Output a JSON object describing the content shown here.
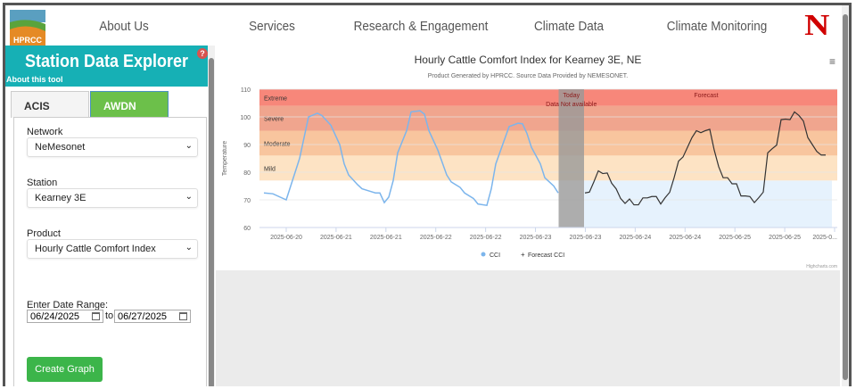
{
  "nav": {
    "logo_text": "HPRCC",
    "items": [
      "About Us",
      "Services",
      "Research & Engagement",
      "Climate Data",
      "Climate Monitoring"
    ],
    "partner_logo_text": "N"
  },
  "sidebar": {
    "title": "Station Data Explorer",
    "about_link": "About this tool",
    "help_icon": "?",
    "tabs": [
      {
        "label": "ACIS",
        "active": false
      },
      {
        "label": "AWDN",
        "active": true
      }
    ],
    "network_label": "Network",
    "network_value": "NeMesonet",
    "station_label": "Station",
    "station_value": "Kearney 3E",
    "product_label": "Product",
    "product_value": "Hourly Cattle Comfort Index",
    "date_label": "Enter Date Range:",
    "date_from": "06/24/2025",
    "date_sep": "to",
    "date_to": "06/27/2025",
    "create_button": "Create Graph"
  },
  "colors": {
    "teal": "#16b0b5",
    "green_tab": "#6cc04a",
    "button": "#3cb54a",
    "cci": "#7cb5ec",
    "forecast": "#333333"
  },
  "chart_data": {
    "type": "line",
    "title": "Hourly Cattle Comfort Index for Kearney 3E, NE",
    "subtitle": "Product Generated by HPRCC. Source Data Provided by NEMESONET.",
    "ylabel": "Temperature",
    "ylim": [
      60,
      110
    ],
    "yticks": [
      60,
      70,
      80,
      90,
      100,
      110
    ],
    "xticks": [
      "2025-06-20",
      "2025-06-21",
      "2025-06-21",
      "2025-06-22",
      "2025-06-22",
      "2025-06-23",
      "2025-06-23",
      "2025-06-24",
      "2025-06-24",
      "2025-06-25",
      "2025-06-25",
      "2025-0..."
    ],
    "bands": [
      {
        "label": "Extreme",
        "from": 104,
        "to": 110,
        "color": "#f7877a"
      },
      {
        "label": "Severe",
        "from": 95,
        "to": 104,
        "color": "#f0a58e"
      },
      {
        "label": "Moderate",
        "from": 86,
        "to": 95,
        "color": "#f8c59e"
      },
      {
        "label": "Mild",
        "from": 77,
        "to": 86,
        "color": "#fde3c4"
      }
    ],
    "today_band": {
      "label": "Today",
      "note": "Data Not available",
      "color": "#999999"
    },
    "forecast_band": {
      "label": "Forecast",
      "color": "#e6f2fd"
    },
    "legend": "bottom",
    "credits": "Highcharts.com",
    "series": [
      {
        "name": "CCI",
        "color": "#7cb5ec",
        "points": [
          [
            "2025-06-19 19:00",
            72.5
          ],
          [
            "2025-06-19 21:00",
            72.2
          ],
          [
            "2025-06-20 00:00",
            70
          ],
          [
            "2025-06-20 01:00",
            75
          ],
          [
            "2025-06-20 03:00",
            85
          ],
          [
            "2025-06-20 05:00",
            100
          ],
          [
            "2025-06-20 07:00",
            101.3
          ],
          [
            "2025-06-20 08:00",
            100.5
          ],
          [
            "2025-06-20 10:00",
            97
          ],
          [
            "2025-06-20 12:00",
            90
          ],
          [
            "2025-06-20 13:00",
            83
          ],
          [
            "2025-06-20 14:00",
            79
          ],
          [
            "2025-06-20 16:00",
            75.5
          ],
          [
            "2025-06-20 17:00",
            74
          ],
          [
            "2025-06-20 19:00",
            73
          ],
          [
            "2025-06-20 20:00",
            72.5
          ],
          [
            "2025-06-20 21:00",
            72.5
          ],
          [
            "2025-06-20 22:00",
            69
          ],
          [
            "2025-06-20 23:00",
            71
          ],
          [
            "2025-06-21 00:00",
            77
          ],
          [
            "2025-06-21 01:00",
            87
          ],
          [
            "2025-06-21 03:00",
            95
          ],
          [
            "2025-06-21 04:00",
            101.8
          ],
          [
            "2025-06-21 06:00",
            102.2
          ],
          [
            "2025-06-21 07:00",
            101
          ],
          [
            "2025-06-21 08:00",
            95
          ],
          [
            "2025-06-21 10:00",
            88
          ],
          [
            "2025-06-21 12:00",
            79
          ],
          [
            "2025-06-21 13:00",
            76.5
          ],
          [
            "2025-06-21 15:00",
            74.5
          ],
          [
            "2025-06-21 16:00",
            72.5
          ],
          [
            "2025-06-21 18:00",
            70.5
          ],
          [
            "2025-06-21 19:00",
            68.5
          ],
          [
            "2025-06-21 21:00",
            68
          ],
          [
            "2025-06-21 22:00",
            74
          ],
          [
            "2025-06-21 23:00",
            83
          ],
          [
            "2025-06-22 01:00",
            92
          ],
          [
            "2025-06-22 02:00",
            96.5
          ],
          [
            "2025-06-22 04:00",
            97.7
          ],
          [
            "2025-06-22 05:00",
            97.5
          ],
          [
            "2025-06-22 06:00",
            94
          ],
          [
            "2025-06-22 07:00",
            89
          ],
          [
            "2025-06-22 09:00",
            83
          ],
          [
            "2025-06-22 10:00",
            78
          ],
          [
            "2025-06-22 12:00",
            75
          ],
          [
            "2025-06-22 13:00",
            72.5
          ]
        ]
      },
      {
        "name": "Forecast CCI",
        "color": "#333333",
        "start": "2025-06-22 19:00",
        "interval_hours": 1,
        "values": [
          72.5,
          72.8,
          76.5,
          80.5,
          79.5,
          79.7,
          76,
          74,
          70.5,
          68.7,
          70.3,
          68.2,
          68.2,
          70.7,
          70.7,
          71.2,
          71.2,
          68.5,
          70.8,
          72.7,
          78,
          84,
          85.5,
          89,
          92.5,
          95,
          94.3,
          95,
          95.5,
          88,
          82,
          78,
          78,
          75.8,
          75.8,
          71.4,
          71.4,
          71.2,
          69,
          70.8,
          72.8,
          87,
          88.5,
          89.8,
          99,
          99.2,
          99,
          101.8,
          100.5,
          98.5,
          92.5,
          90,
          87.5,
          86.2,
          86.2
        ]
      }
    ]
  }
}
